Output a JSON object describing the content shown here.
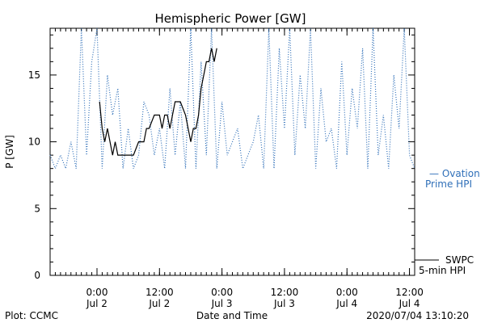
{
  "chart_data": {
    "type": "line",
    "title": "Hemispheric Power [GW]",
    "xlabel": "Date and Time",
    "ylabel": "P [GW]",
    "ylim": [
      0,
      18.5
    ],
    "yticks": [
      0,
      5,
      10,
      15
    ],
    "xlim": [
      "2020-07-01T15:00",
      "2020-07-04T13:00"
    ],
    "xticks": [
      {
        "x": "2020-07-02T00:00",
        "time": "0:00",
        "date": "Jul 2"
      },
      {
        "x": "2020-07-02T12:00",
        "time": "12:00",
        "date": "Jul 2"
      },
      {
        "x": "2020-07-03T00:00",
        "time": "0:00",
        "date": "Jul 3"
      },
      {
        "x": "2020-07-03T12:00",
        "time": "12:00",
        "date": "Jul 3"
      },
      {
        "x": "2020-07-04T00:00",
        "time": "0:00",
        "date": "Jul 4"
      },
      {
        "x": "2020-07-04T12:00",
        "time": "12:00",
        "date": "Jul 4"
      }
    ],
    "footer_left": "Plot: CCMC",
    "footer_right": "2020/07/04 13:10:20",
    "legend_placement": "right",
    "series": [
      {
        "name": "— Ovation Prime HPI",
        "label_lines": [
          "— Ovation",
          "Prime HPI"
        ],
        "color": "#2f6fb8",
        "style": "dotted",
        "x": [
          "2020-07-01T15:00",
          "2020-07-01T16:00",
          "2020-07-01T17:00",
          "2020-07-01T18:00",
          "2020-07-01T19:00",
          "2020-07-01T20:00",
          "2020-07-01T21:00",
          "2020-07-01T22:00",
          "2020-07-01T23:00",
          "2020-07-02T00:00",
          "2020-07-02T01:00",
          "2020-07-02T02:00",
          "2020-07-02T03:00",
          "2020-07-02T04:00",
          "2020-07-02T05:00",
          "2020-07-02T06:00",
          "2020-07-02T07:00",
          "2020-07-02T08:00",
          "2020-07-02T09:00",
          "2020-07-02T10:00",
          "2020-07-02T11:00",
          "2020-07-02T12:00",
          "2020-07-02T13:00",
          "2020-07-02T14:00",
          "2020-07-02T15:00",
          "2020-07-02T16:00",
          "2020-07-02T17:00",
          "2020-07-02T18:00",
          "2020-07-02T19:00",
          "2020-07-02T20:00",
          "2020-07-02T21:00",
          "2020-07-02T22:00",
          "2020-07-02T23:00",
          "2020-07-03T00:00",
          "2020-07-03T01:00",
          "2020-07-03T02:00",
          "2020-07-03T03:00",
          "2020-07-03T04:00",
          "2020-07-03T05:00",
          "2020-07-03T06:00",
          "2020-07-03T07:00",
          "2020-07-03T08:00",
          "2020-07-03T09:00",
          "2020-07-03T10:00",
          "2020-07-03T11:00",
          "2020-07-03T12:00",
          "2020-07-03T13:00",
          "2020-07-03T14:00",
          "2020-07-03T15:00",
          "2020-07-03T16:00",
          "2020-07-03T17:00",
          "2020-07-03T18:00",
          "2020-07-03T19:00",
          "2020-07-03T20:00",
          "2020-07-03T21:00",
          "2020-07-03T22:00",
          "2020-07-03T23:00",
          "2020-07-04T00:00",
          "2020-07-04T01:00",
          "2020-07-04T02:00",
          "2020-07-04T03:00",
          "2020-07-04T04:00",
          "2020-07-04T05:00",
          "2020-07-04T06:00",
          "2020-07-04T07:00",
          "2020-07-04T08:00",
          "2020-07-04T09:00",
          "2020-07-04T10:00",
          "2020-07-04T11:00",
          "2020-07-04T12:00",
          "2020-07-04T13:00"
        ],
        "y": [
          9,
          8,
          9,
          8,
          10,
          8,
          18.5,
          9,
          16,
          18.5,
          8,
          15,
          12,
          14,
          8,
          11,
          8,
          9,
          13,
          12,
          9,
          11,
          8,
          14,
          9,
          13,
          8,
          18.5,
          8,
          16,
          9,
          18.5,
          8,
          13,
          9,
          10,
          11,
          8,
          9,
          10,
          12,
          8,
          18.5,
          8,
          17,
          11,
          18.5,
          9,
          15,
          11,
          18.5,
          8,
          14,
          10,
          11,
          8,
          16,
          9,
          14,
          11,
          17,
          8,
          18.5,
          9,
          12,
          8,
          15,
          11,
          18.5,
          9,
          8
        ]
      },
      {
        "name": "SWPC 5-min HPI",
        "label_lines": [
          "SWPC",
          "5-min HPI"
        ],
        "color": "#000000",
        "style": "solid",
        "x": [
          "2020-07-02T00:30",
          "2020-07-02T01:00",
          "2020-07-02T01:30",
          "2020-07-02T02:00",
          "2020-07-02T02:30",
          "2020-07-02T03:00",
          "2020-07-02T03:30",
          "2020-07-02T04:00",
          "2020-07-02T04:30",
          "2020-07-02T05:00",
          "2020-07-02T06:00",
          "2020-07-02T07:00",
          "2020-07-02T08:00",
          "2020-07-02T09:00",
          "2020-07-02T09:30",
          "2020-07-02T10:00",
          "2020-07-02T11:00",
          "2020-07-02T12:00",
          "2020-07-02T12:30",
          "2020-07-02T13:00",
          "2020-07-02T13:30",
          "2020-07-02T14:00",
          "2020-07-02T14:30",
          "2020-07-02T15:00",
          "2020-07-02T15:30",
          "2020-07-02T16:00",
          "2020-07-02T17:00",
          "2020-07-02T18:00",
          "2020-07-02T18:30",
          "2020-07-02T19:00",
          "2020-07-02T19:30",
          "2020-07-02T20:00",
          "2020-07-02T20:30",
          "2020-07-02T21:00",
          "2020-07-02T21:30",
          "2020-07-02T22:00",
          "2020-07-02T22:30",
          "2020-07-02T23:00"
        ],
        "y": [
          13,
          11,
          10,
          11,
          10,
          9,
          10,
          9,
          9,
          9,
          9,
          9,
          10,
          10,
          11,
          11,
          12,
          12,
          11,
          12,
          12,
          11,
          12,
          13,
          13,
          13,
          12,
          10,
          11,
          11,
          12,
          14,
          15,
          16,
          16,
          17,
          16,
          17
        ]
      }
    ]
  }
}
